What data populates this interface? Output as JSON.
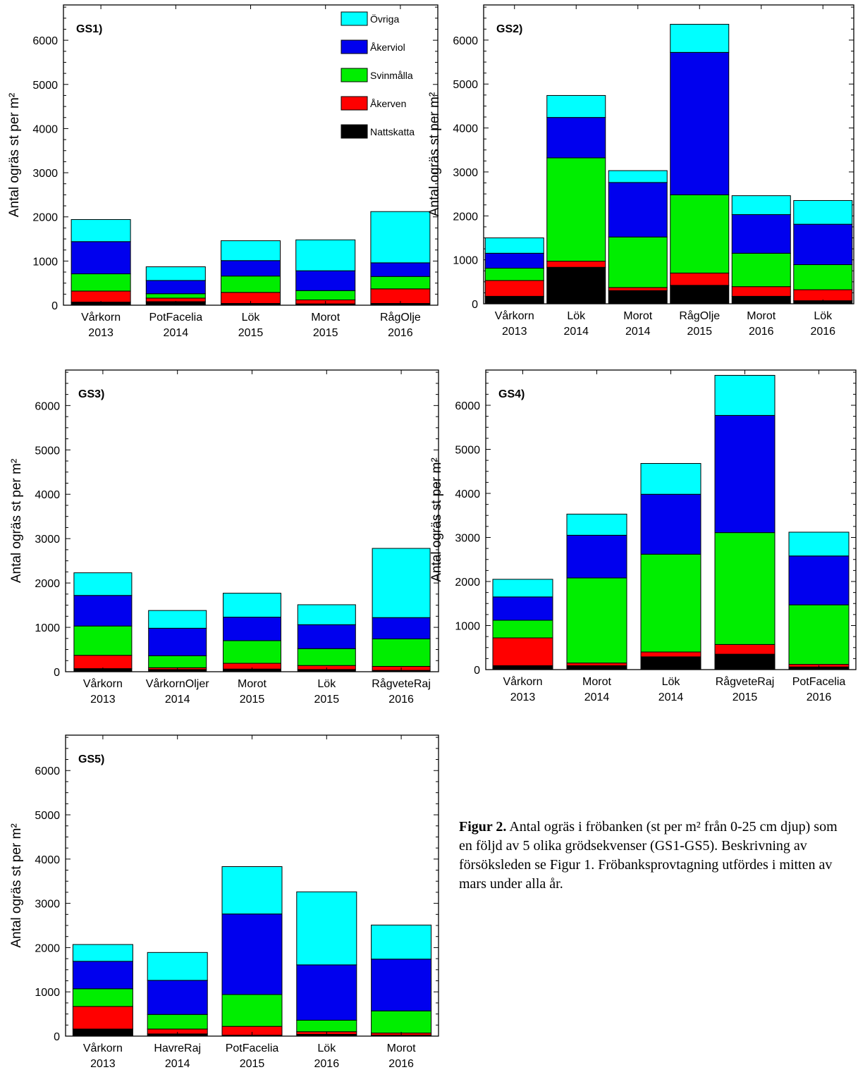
{
  "colors": {
    "Nattskatta": "#000000",
    "Åkerven": "#ff0000",
    "Svinmålla": "#00ee00",
    "Åkerviol": "#0000ee",
    "Övriga": "#00ffff"
  },
  "legend": [
    "Övriga",
    "Åkerviol",
    "Svinmålla",
    "Åkerven",
    "Nattskatta"
  ],
  "ylabel": "Antal ogräs st per m²",
  "caption": {
    "bold": "Figur 2.",
    "text": " Antal ogräs i fröbanken (st per m² från 0-25 cm djup) som en följd av 5 olika grödsekvenser (GS1-GS5). Beskrivning av försöksleden se Figur 1. Fröbanksprovtagning utfördes i mitten av mars under alla år."
  },
  "chart_data": [
    {
      "type": "bar",
      "stacked": true,
      "title": "GS1)",
      "ylim": [
        0,
        6800
      ],
      "yticks": [
        0,
        1000,
        2000,
        3000,
        4000,
        5000,
        6000
      ],
      "categories": [
        [
          "Vårkorn",
          "2013"
        ],
        [
          "PotFacelia",
          "2014"
        ],
        [
          "Lök",
          "2015"
        ],
        [
          "Morot",
          "2015"
        ],
        [
          "RågOlje",
          "2016"
        ]
      ],
      "series": [
        {
          "name": "Nattskatta",
          "values": [
            70,
            80,
            40,
            30,
            40
          ]
        },
        {
          "name": "Åkerven",
          "values": [
            250,
            80,
            250,
            90,
            330
          ]
        },
        {
          "name": "Svinmålla",
          "values": [
            390,
            100,
            370,
            210,
            280
          ]
        },
        {
          "name": "Åkerviol",
          "values": [
            730,
            300,
            350,
            450,
            310
          ]
        },
        {
          "name": "Övriga",
          "values": [
            500,
            310,
            450,
            700,
            1160
          ]
        }
      ]
    },
    {
      "type": "bar",
      "stacked": true,
      "title": "GS2)",
      "ylim": [
        0,
        6800
      ],
      "yticks": [
        0,
        1000,
        2000,
        3000,
        4000,
        5000,
        6000
      ],
      "categories": [
        [
          "Vårkorn",
          "2013"
        ],
        [
          "Lök",
          "2014"
        ],
        [
          "Morot",
          "2014"
        ],
        [
          "RågOlje",
          "2015"
        ],
        [
          "Morot",
          "2016"
        ],
        [
          "Lök",
          "2016"
        ]
      ],
      "series": [
        {
          "name": "Nattskatta",
          "values": [
            170,
            830,
            300,
            420,
            170,
            70
          ]
        },
        {
          "name": "Åkerven",
          "values": [
            360,
            140,
            70,
            280,
            220,
            250
          ]
        },
        {
          "name": "Svinmålla",
          "values": [
            280,
            2350,
            1150,
            1780,
            760,
            570
          ]
        },
        {
          "name": "Åkerviol",
          "values": [
            340,
            920,
            1240,
            3240,
            880,
            920
          ]
        },
        {
          "name": "Övriga",
          "values": [
            350,
            500,
            270,
            640,
            430,
            540
          ]
        }
      ]
    },
    {
      "type": "bar",
      "stacked": true,
      "title": "GS3)",
      "ylim": [
        0,
        6800
      ],
      "yticks": [
        0,
        1000,
        2000,
        3000,
        4000,
        5000,
        6000
      ],
      "categories": [
        [
          "Vårkorn",
          "2013"
        ],
        [
          "VårkornOljer",
          "2014"
        ],
        [
          "Morot",
          "2015"
        ],
        [
          "Lök",
          "2015"
        ],
        [
          "RågveteRaj",
          "2016"
        ]
      ],
      "series": [
        {
          "name": "Nattskatta",
          "values": [
            70,
            50,
            60,
            50,
            30
          ]
        },
        {
          "name": "Åkerven",
          "values": [
            300,
            40,
            130,
            90,
            90
          ]
        },
        {
          "name": "Svinmålla",
          "values": [
            660,
            270,
            510,
            380,
            620
          ]
        },
        {
          "name": "Åkerviol",
          "values": [
            690,
            620,
            530,
            540,
            480
          ]
        },
        {
          "name": "Övriga",
          "values": [
            510,
            400,
            540,
            450,
            1560
          ]
        }
      ]
    },
    {
      "type": "bar",
      "stacked": true,
      "title": "GS4)",
      "ylim": [
        0,
        6800
      ],
      "yticks": [
        0,
        1000,
        2000,
        3000,
        4000,
        5000,
        6000
      ],
      "categories": [
        [
          "Vårkorn",
          "2013"
        ],
        [
          "Morot",
          "2014"
        ],
        [
          "Lök",
          "2014"
        ],
        [
          "RågveteRaj",
          "2015"
        ],
        [
          "PotFacelia",
          "2016"
        ]
      ],
      "series": [
        {
          "name": "Nattskatta",
          "values": [
            90,
            90,
            290,
            350,
            60
          ]
        },
        {
          "name": "Åkerven",
          "values": [
            630,
            60,
            110,
            220,
            60
          ]
        },
        {
          "name": "Svinmålla",
          "values": [
            400,
            1930,
            2220,
            2540,
            1350
          ]
        },
        {
          "name": "Åkerviol",
          "values": [
            530,
            970,
            1360,
            2660,
            1110
          ]
        },
        {
          "name": "Övriga",
          "values": [
            400,
            480,
            700,
            910,
            540
          ]
        }
      ]
    },
    {
      "type": "bar",
      "stacked": true,
      "title": "GS5)",
      "ylim": [
        0,
        6800
      ],
      "yticks": [
        0,
        1000,
        2000,
        3000,
        4000,
        5000,
        6000
      ],
      "categories": [
        [
          "Vårkorn",
          "2013"
        ],
        [
          "HavreRaj",
          "2014"
        ],
        [
          "PotFacelia",
          "2015"
        ],
        [
          "Lök",
          "2016"
        ],
        [
          "Morot",
          "2016"
        ]
      ],
      "series": [
        {
          "name": "Nattskatta",
          "values": [
            160,
            50,
            20,
            40,
            20
          ]
        },
        {
          "name": "Åkerven",
          "values": [
            510,
            110,
            200,
            60,
            50
          ]
        },
        {
          "name": "Svinmålla",
          "values": [
            400,
            330,
            720,
            260,
            500
          ]
        },
        {
          "name": "Åkerviol",
          "values": [
            620,
            770,
            1820,
            1250,
            1170
          ]
        },
        {
          "name": "Övriga",
          "values": [
            380,
            630,
            1070,
            1650,
            770
          ]
        }
      ]
    }
  ]
}
